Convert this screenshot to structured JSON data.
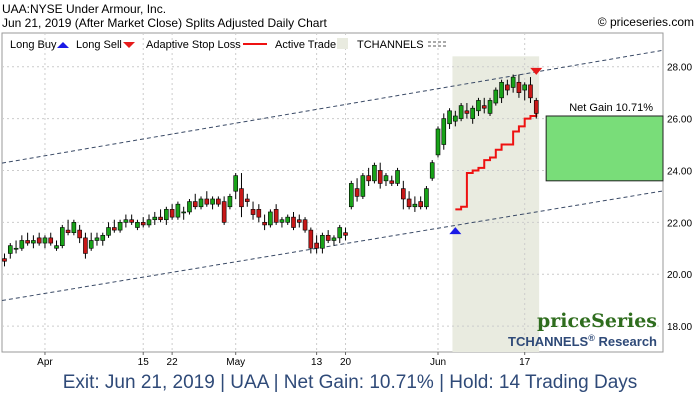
{
  "header": {
    "title": "UAA:NYSE Under Armour, Inc.",
    "subtitle": "Jun 21, 2019 (After Market Close)  Splits Adjusted Daily Chart",
    "copyright": "© priceseries.com"
  },
  "legend": {
    "long_buy": "Long Buy",
    "long_sell": "Long Sell",
    "adaptive_stop": "Adaptive Stop Loss",
    "active_trade": "Active Trade",
    "tchannels": "TCHANNELS"
  },
  "brand": {
    "name": "priceSeries",
    "research": "TCHANNELS",
    "research_suffix": "Research",
    "reg": "®"
  },
  "net_gain_label": "Net Gain 10.71%",
  "footer": "Exit: Jun 21, 2019 | UAA | Net Gain: 10.71% | Hold: 14 Trading Days",
  "colors": {
    "up": "#18a218",
    "down": "#c81818",
    "stop": "#ee1111",
    "buy": "#1a1ae6",
    "sell": "#e61a1a",
    "trade_zone": "#e9ebe0",
    "gain_box": "#79dd79",
    "channel": "#3a4a66"
  },
  "chart_data": {
    "type": "candlestick",
    "ylim": [
      17.0,
      29.3
    ],
    "yticks": [
      18.0,
      20.0,
      22.0,
      24.0,
      26.0,
      28.0
    ],
    "ytick_labels": [
      "18.00",
      "20.00",
      "22.00",
      "24.00",
      "26.00",
      "28.00"
    ],
    "xtick_labels": [
      "Apr",
      "15",
      "22",
      "May",
      "13",
      "20",
      "Jun",
      "17"
    ],
    "xtick_bars": [
      7,
      24,
      29,
      40,
      54,
      59,
      75,
      90
    ],
    "bars": [
      {
        "o": 20.6,
        "h": 20.8,
        "l": 20.3,
        "c": 20.5
      },
      {
        "o": 20.8,
        "h": 21.2,
        "l": 20.6,
        "c": 21.1
      },
      {
        "o": 21.0,
        "h": 21.3,
        "l": 20.8,
        "c": 21.0
      },
      {
        "o": 21.0,
        "h": 21.5,
        "l": 20.9,
        "c": 21.3
      },
      {
        "o": 21.3,
        "h": 21.6,
        "l": 21.1,
        "c": 21.2
      },
      {
        "o": 21.2,
        "h": 21.5,
        "l": 21.0,
        "c": 21.3
      },
      {
        "o": 21.4,
        "h": 21.6,
        "l": 21.1,
        "c": 21.2
      },
      {
        "o": 21.2,
        "h": 21.5,
        "l": 21.0,
        "c": 21.4
      },
      {
        "o": 21.4,
        "h": 21.6,
        "l": 21.1,
        "c": 21.2
      },
      {
        "o": 21.0,
        "h": 21.3,
        "l": 20.9,
        "c": 21.1
      },
      {
        "o": 21.1,
        "h": 21.9,
        "l": 21.0,
        "c": 21.8
      },
      {
        "o": 21.7,
        "h": 22.1,
        "l": 21.5,
        "c": 21.6
      },
      {
        "o": 21.6,
        "h": 22.1,
        "l": 21.5,
        "c": 22.0
      },
      {
        "o": 21.7,
        "h": 21.9,
        "l": 21.2,
        "c": 21.4
      },
      {
        "o": 21.4,
        "h": 21.6,
        "l": 20.6,
        "c": 20.8
      },
      {
        "o": 21.0,
        "h": 21.6,
        "l": 20.9,
        "c": 21.3
      },
      {
        "o": 21.3,
        "h": 21.6,
        "l": 21.1,
        "c": 21.4
      },
      {
        "o": 21.3,
        "h": 21.6,
        "l": 21.1,
        "c": 21.5
      },
      {
        "o": 21.5,
        "h": 22.0,
        "l": 21.4,
        "c": 21.8
      },
      {
        "o": 21.8,
        "h": 22.1,
        "l": 21.6,
        "c": 21.7
      },
      {
        "o": 21.7,
        "h": 22.1,
        "l": 21.6,
        "c": 22.0
      },
      {
        "o": 22.0,
        "h": 22.3,
        "l": 21.8,
        "c": 22.1
      },
      {
        "o": 22.1,
        "h": 22.3,
        "l": 21.9,
        "c": 22.0
      },
      {
        "o": 21.8,
        "h": 22.1,
        "l": 21.7,
        "c": 22.0
      },
      {
        "o": 22.0,
        "h": 22.2,
        "l": 21.8,
        "c": 21.9
      },
      {
        "o": 21.9,
        "h": 22.3,
        "l": 21.8,
        "c": 22.1
      },
      {
        "o": 22.1,
        "h": 22.4,
        "l": 21.9,
        "c": 22.2
      },
      {
        "o": 22.2,
        "h": 22.5,
        "l": 22.0,
        "c": 22.1
      },
      {
        "o": 22.1,
        "h": 22.6,
        "l": 21.9,
        "c": 22.5
      },
      {
        "o": 22.5,
        "h": 22.7,
        "l": 22.1,
        "c": 22.2
      },
      {
        "o": 22.2,
        "h": 22.8,
        "l": 22.1,
        "c": 22.7
      },
      {
        "o": 22.4,
        "h": 22.6,
        "l": 22.1,
        "c": 22.4
      },
      {
        "o": 22.4,
        "h": 22.9,
        "l": 22.3,
        "c": 22.8
      },
      {
        "o": 22.8,
        "h": 23.1,
        "l": 22.5,
        "c": 22.6
      },
      {
        "o": 22.6,
        "h": 23.0,
        "l": 22.5,
        "c": 22.9
      },
      {
        "o": 22.9,
        "h": 23.2,
        "l": 22.6,
        "c": 22.7
      },
      {
        "o": 22.7,
        "h": 23.0,
        "l": 22.5,
        "c": 22.9
      },
      {
        "o": 22.9,
        "h": 23.0,
        "l": 22.6,
        "c": 22.7
      },
      {
        "o": 22.8,
        "h": 23.0,
        "l": 21.9,
        "c": 22.0
      },
      {
        "o": 22.6,
        "h": 23.1,
        "l": 22.5,
        "c": 23.0
      },
      {
        "o": 23.2,
        "h": 23.9,
        "l": 22.9,
        "c": 23.8
      },
      {
        "o": 23.3,
        "h": 23.9,
        "l": 22.2,
        "c": 22.6
      },
      {
        "o": 22.9,
        "h": 23.1,
        "l": 22.6,
        "c": 22.8
      },
      {
        "o": 22.5,
        "h": 22.8,
        "l": 22.1,
        "c": 22.3
      },
      {
        "o": 22.5,
        "h": 22.7,
        "l": 22.0,
        "c": 22.2
      },
      {
        "o": 22.0,
        "h": 22.3,
        "l": 21.7,
        "c": 21.9
      },
      {
        "o": 21.9,
        "h": 22.5,
        "l": 21.8,
        "c": 22.4
      },
      {
        "o": 22.5,
        "h": 22.7,
        "l": 21.9,
        "c": 22.0
      },
      {
        "o": 22.0,
        "h": 22.2,
        "l": 21.8,
        "c": 22.1
      },
      {
        "o": 22.0,
        "h": 22.3,
        "l": 21.9,
        "c": 22.2
      },
      {
        "o": 22.2,
        "h": 22.4,
        "l": 21.7,
        "c": 21.8
      },
      {
        "o": 22.1,
        "h": 22.3,
        "l": 21.8,
        "c": 22.0
      },
      {
        "o": 22.1,
        "h": 22.2,
        "l": 21.6,
        "c": 21.7
      },
      {
        "o": 21.7,
        "h": 21.8,
        "l": 20.8,
        "c": 21.0
      },
      {
        "o": 21.2,
        "h": 21.5,
        "l": 20.8,
        "c": 21.0
      },
      {
        "o": 21.0,
        "h": 21.6,
        "l": 20.8,
        "c": 21.5
      },
      {
        "o": 21.5,
        "h": 21.7,
        "l": 21.2,
        "c": 21.3
      },
      {
        "o": 21.3,
        "h": 21.5,
        "l": 21.1,
        "c": 21.4
      },
      {
        "o": 21.4,
        "h": 21.9,
        "l": 21.2,
        "c": 21.8
      },
      {
        "o": 21.6,
        "h": 21.8,
        "l": 21.3,
        "c": 21.5
      },
      {
        "o": 22.6,
        "h": 23.6,
        "l": 22.5,
        "c": 23.5
      },
      {
        "o": 23.3,
        "h": 23.7,
        "l": 22.8,
        "c": 23.0
      },
      {
        "o": 23.0,
        "h": 23.9,
        "l": 22.9,
        "c": 23.8
      },
      {
        "o": 23.8,
        "h": 24.1,
        "l": 23.4,
        "c": 23.6
      },
      {
        "o": 23.6,
        "h": 24.3,
        "l": 23.5,
        "c": 24.2
      },
      {
        "o": 24.0,
        "h": 24.3,
        "l": 23.3,
        "c": 23.5
      },
      {
        "o": 23.6,
        "h": 23.9,
        "l": 23.4,
        "c": 23.8
      },
      {
        "o": 23.6,
        "h": 23.8,
        "l": 23.4,
        "c": 23.5
      },
      {
        "o": 23.5,
        "h": 24.1,
        "l": 23.4,
        "c": 24.0
      },
      {
        "o": 23.3,
        "h": 23.6,
        "l": 22.5,
        "c": 22.9
      },
      {
        "o": 22.9,
        "h": 23.2,
        "l": 22.5,
        "c": 22.6
      },
      {
        "o": 22.6,
        "h": 23.0,
        "l": 22.4,
        "c": 22.7
      },
      {
        "o": 22.8,
        "h": 23.0,
        "l": 22.5,
        "c": 22.6
      },
      {
        "o": 22.6,
        "h": 23.4,
        "l": 22.5,
        "c": 23.3
      },
      {
        "o": 23.7,
        "h": 24.4,
        "l": 23.6,
        "c": 24.3
      },
      {
        "o": 24.6,
        "h": 25.7,
        "l": 24.5,
        "c": 25.6
      },
      {
        "o": 25.0,
        "h": 26.2,
        "l": 24.8,
        "c": 26.0
      },
      {
        "o": 25.8,
        "h": 26.4,
        "l": 25.6,
        "c": 26.3
      },
      {
        "o": 25.9,
        "h": 26.3,
        "l": 25.7,
        "c": 26.1
      },
      {
        "o": 26.0,
        "h": 26.6,
        "l": 25.9,
        "c": 26.5
      },
      {
        "o": 26.3,
        "h": 26.6,
        "l": 26.0,
        "c": 26.2
      },
      {
        "o": 26.0,
        "h": 26.5,
        "l": 25.8,
        "c": 26.4
      },
      {
        "o": 26.3,
        "h": 26.8,
        "l": 26.1,
        "c": 26.7
      },
      {
        "o": 26.5,
        "h": 26.8,
        "l": 26.2,
        "c": 26.4
      },
      {
        "o": 26.2,
        "h": 26.8,
        "l": 26.1,
        "c": 26.7
      },
      {
        "o": 26.6,
        "h": 27.2,
        "l": 26.5,
        "c": 27.1
      },
      {
        "o": 26.8,
        "h": 27.5,
        "l": 26.6,
        "c": 27.4
      },
      {
        "o": 27.3,
        "h": 27.5,
        "l": 26.9,
        "c": 27.1
      },
      {
        "o": 27.2,
        "h": 27.7,
        "l": 27.0,
        "c": 27.6
      },
      {
        "o": 27.4,
        "h": 27.7,
        "l": 26.8,
        "c": 27.0
      },
      {
        "o": 27.1,
        "h": 27.4,
        "l": 26.7,
        "c": 27.3
      },
      {
        "o": 27.3,
        "h": 27.6,
        "l": 26.6,
        "c": 26.8
      },
      {
        "o": 26.7,
        "h": 26.8,
        "l": 26.0,
        "c": 26.2
      }
    ],
    "trade": {
      "entry_bar": 78,
      "exit_bar": 92
    },
    "stop_loss": [
      [
        78,
        22.5
      ],
      [
        79,
        22.6
      ],
      [
        80,
        23.9
      ],
      [
        81,
        24.0
      ],
      [
        82,
        24.1
      ],
      [
        83,
        24.4
      ],
      [
        84,
        24.5
      ],
      [
        85,
        24.8
      ],
      [
        86,
        25.0
      ],
      [
        87,
        25.0
      ],
      [
        88,
        25.5
      ],
      [
        89,
        25.7
      ],
      [
        90,
        26.0
      ],
      [
        91,
        26.1
      ],
      [
        92,
        26.2
      ]
    ],
    "buy_marker": {
      "bar": 78,
      "price": 21.7
    },
    "sell_marker": {
      "bar": 92,
      "price": 27.8
    },
    "channel_upper": [
      [
        0,
        24.3
      ],
      [
        92,
        27.8
      ]
    ],
    "channel_lower": [
      [
        0,
        19.0
      ],
      [
        92,
        22.4
      ]
    ],
    "gain_box": {
      "bottom": 23.6,
      "top": 26.1,
      "label": "Net Gain 10.71%"
    }
  }
}
